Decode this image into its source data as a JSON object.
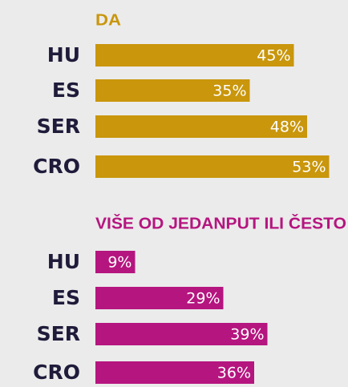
{
  "chart_data": [
    {
      "type": "bar",
      "title": "DA",
      "categories": [
        "HU",
        "ES",
        "SER",
        "CRO"
      ],
      "values": [
        45,
        35,
        48,
        53
      ],
      "value_labels": [
        "45%",
        "35%",
        "48%",
        "53%"
      ],
      "color": "#c9960c"
    },
    {
      "type": "bar",
      "title": "VIŠE OD JEDANPUT ILI ČESTO",
      "categories": [
        "HU",
        "ES",
        "SER",
        "CRO"
      ],
      "values": [
        9,
        29,
        39,
        36
      ],
      "value_labels": [
        "9%",
        "29%",
        "39%",
        "36%"
      ],
      "color": "#b5157f"
    }
  ]
}
